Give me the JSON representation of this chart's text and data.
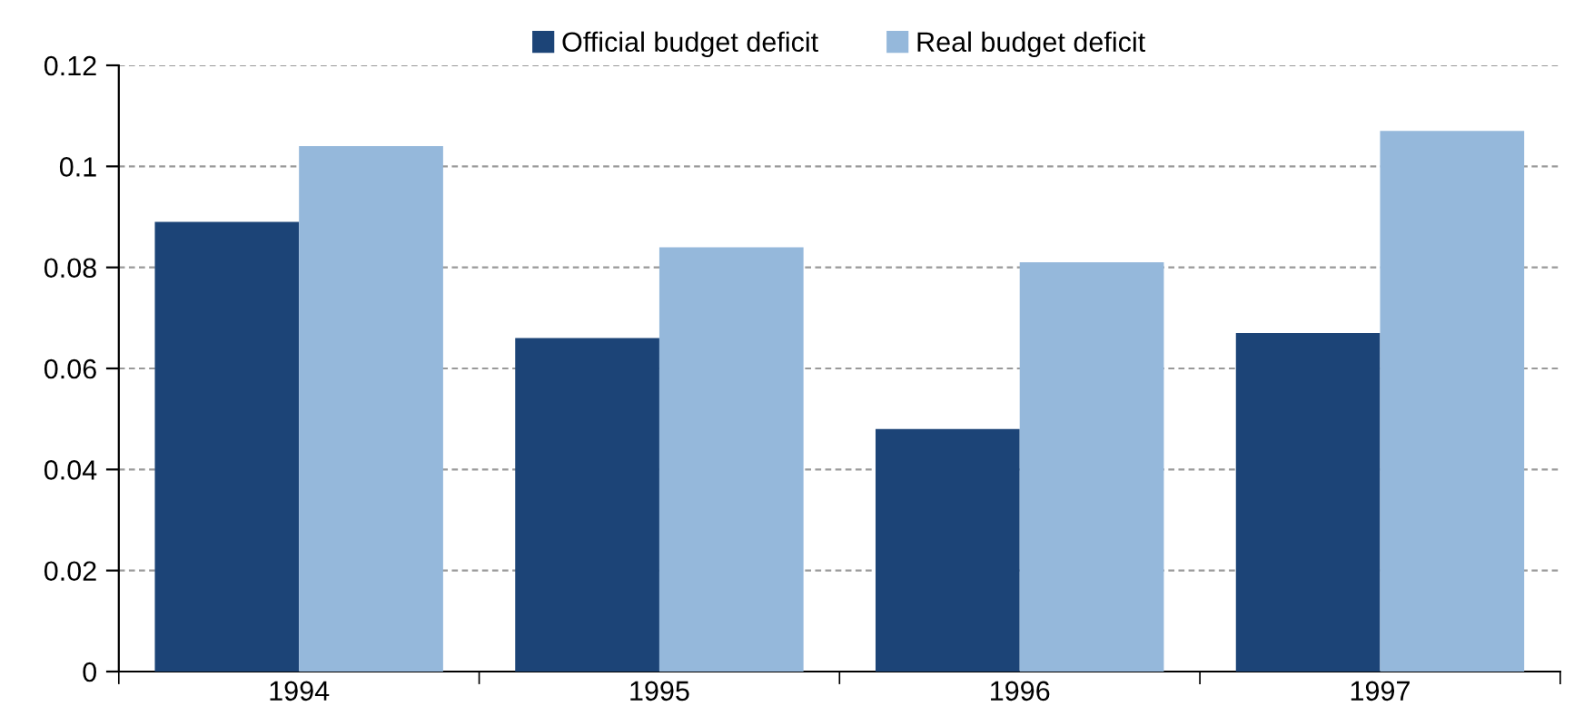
{
  "chart_data": {
    "type": "bar",
    "categories": [
      "1994",
      "1995",
      "1996",
      "1997"
    ],
    "series": [
      {
        "name": "Official budget deficit",
        "color": "#1c4477",
        "values": [
          0.089,
          0.066,
          0.048,
          0.067
        ]
      },
      {
        "name": "Real budget deficit",
        "color": "#95b8db",
        "values": [
          0.104,
          0.084,
          0.081,
          0.107
        ]
      }
    ],
    "ylim": [
      0,
      0.12
    ],
    "yticks": [
      0,
      0.02,
      0.04,
      0.06,
      0.08,
      0.1,
      0.12
    ],
    "grid": "y",
    "legend": "top"
  }
}
